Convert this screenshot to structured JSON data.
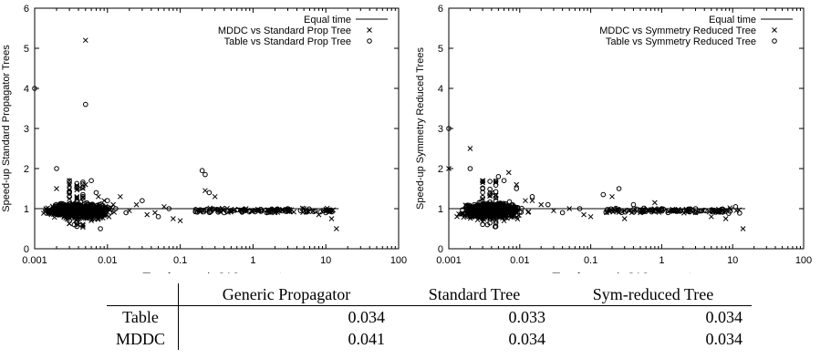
{
  "chart_data": [
    {
      "type": "scatter",
      "xscale": "log",
      "xlim": [
        0.001,
        100
      ],
      "ylim": [
        0,
        6
      ],
      "xlabel": "Time for generic GAC propagator",
      "ylabel": "Speed-up Standard Propagator Trees",
      "xticks": [
        "0.001",
        "0.01",
        "0.1",
        "1",
        "10",
        "100"
      ],
      "yticks": [
        "0",
        "1",
        "2",
        "3",
        "4",
        "5",
        "6"
      ],
      "legend_position": "top-right",
      "reference_line": {
        "name": "Equal time",
        "y": 1,
        "x_range": [
          0.001,
          15
        ]
      },
      "series": [
        {
          "name": "MDDC vs Standard Prop Tree",
          "marker": "x",
          "x": [
            0.005,
            0.002,
            0.003,
            0.0045,
            0.005,
            0.0075,
            0.009,
            0.012,
            0.02,
            0.035,
            0.06,
            0.08,
            0.1,
            0.22,
            0.3,
            0.35,
            0.5,
            0.8,
            1.2,
            2,
            3,
            5,
            8,
            12,
            14,
            0.004,
            0.006,
            0.015,
            0.025,
            0.045
          ],
          "y": [
            5.2,
            1.5,
            1.7,
            0.9,
            1.6,
            1.3,
            1.2,
            1.1,
            0.95,
            0.85,
            1.05,
            0.75,
            0.7,
            1.45,
            1.3,
            0.95,
            0.95,
            1.0,
            0.95,
            0.9,
            0.95,
            1.0,
            0.85,
            0.75,
            0.5,
            0.6,
            0.7,
            1.3,
            1.1,
            0.9
          ]
        },
        {
          "name": "Table vs Standard Prop Tree",
          "marker": "circle",
          "x": [
            0.001,
            0.005,
            0.002,
            0.003,
            0.004,
            0.006,
            0.007,
            0.01,
            0.013,
            0.018,
            0.03,
            0.05,
            0.07,
            0.2,
            0.22,
            0.25,
            0.4,
            1,
            3,
            10,
            0.0035,
            0.008
          ],
          "y": [
            4.0,
            3.6,
            2.0,
            1.3,
            1.5,
            1.7,
            1.4,
            1.2,
            1.0,
            0.9,
            1.2,
            0.8,
            1.0,
            1.95,
            1.85,
            1.4,
            0.9,
            0.95,
            1.0,
            0.9,
            0.6,
            0.5
          ]
        }
      ]
    },
    {
      "type": "scatter",
      "xscale": "log",
      "xlim": [
        0.001,
        100
      ],
      "ylim": [
        0,
        6
      ],
      "xlabel": "Time for generic GAC propagator",
      "ylabel": "Speed-up Symmetry Reduced Trees",
      "xticks": [
        "0.001",
        "0.01",
        "0.1",
        "1",
        "10",
        "100"
      ],
      "yticks": [
        "0",
        "1",
        "2",
        "3",
        "4",
        "5",
        "6"
      ],
      "legend_position": "top-right",
      "reference_line": {
        "name": "Equal time",
        "y": 1,
        "x_range": [
          0.001,
          15
        ]
      },
      "series": [
        {
          "name": "MDDC vs Symmetry Reduced Tree",
          "marker": "x",
          "x": [
            0.001,
            0.002,
            0.003,
            0.004,
            0.007,
            0.009,
            0.012,
            0.02,
            0.03,
            0.05,
            0.08,
            0.1,
            0.2,
            0.3,
            0.5,
            0.8,
            1.5,
            3,
            5,
            8,
            14,
            0.006,
            0.015
          ],
          "y": [
            2.0,
            2.5,
            1.7,
            1.4,
            1.9,
            1.6,
            1.2,
            1.1,
            0.95,
            1.0,
            0.85,
            0.8,
            1.3,
            0.75,
            0.9,
            1.15,
            0.95,
            0.9,
            0.8,
            0.75,
            0.5,
            0.7,
            1.2
          ]
        },
        {
          "name": "Table vs Symmetry Reduced Tree",
          "marker": "circle",
          "x": [
            0.001,
            0.002,
            0.003,
            0.005,
            0.006,
            0.009,
            0.015,
            0.025,
            0.04,
            0.07,
            0.15,
            0.25,
            0.4,
            1,
            3,
            11,
            0.0035,
            0.0045
          ],
          "y": [
            3.0,
            2.0,
            1.5,
            1.8,
            1.7,
            1.5,
            1.3,
            1.1,
            0.9,
            1.0,
            1.35,
            1.5,
            1.1,
            1.0,
            1.0,
            1.05,
            0.6,
            0.55
          ]
        }
      ]
    }
  ],
  "table": {
    "columns": [
      "Generic Propagator",
      "Standard Tree",
      "Sym-reduced Tree"
    ],
    "rows": [
      {
        "label": "Table",
        "values": [
          "0.034",
          "0.033",
          "0.034"
        ]
      },
      {
        "label": "MDDC",
        "values": [
          "0.041",
          "0.034",
          "0.034"
        ]
      }
    ]
  }
}
